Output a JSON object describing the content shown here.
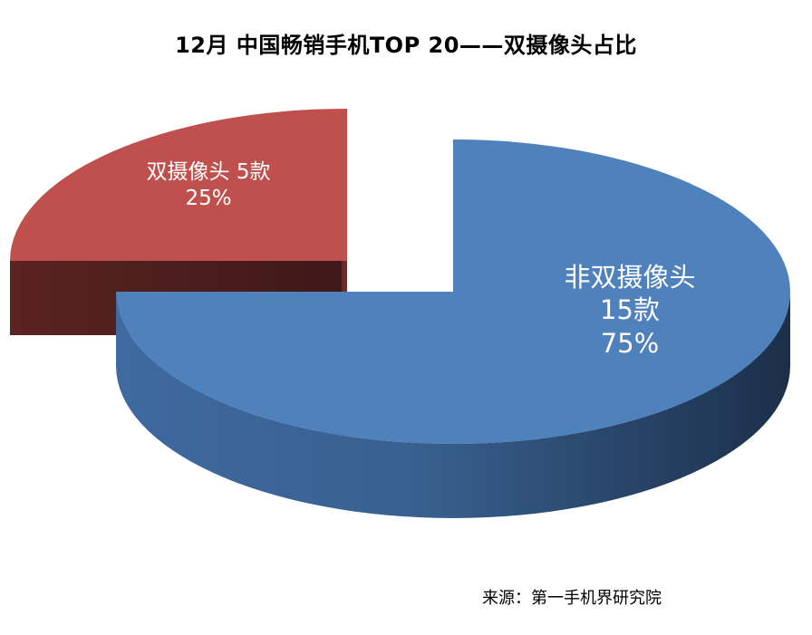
{
  "chart_data": {
    "type": "pie",
    "title": "12月 中国畅销手机TOP 20——双摄像头占比",
    "slices": [
      {
        "name": "非双摄像头",
        "count_label": "15款",
        "value": 15,
        "percent_label": "75%",
        "color": "#4F81BD"
      },
      {
        "name": "双摄像头",
        "count_label": "5款",
        "value": 5,
        "percent_label": "25%",
        "color": "#C0504D"
      }
    ],
    "legend": "none",
    "style": "3d-exploded"
  },
  "source": "来源：第一手机界研究院"
}
